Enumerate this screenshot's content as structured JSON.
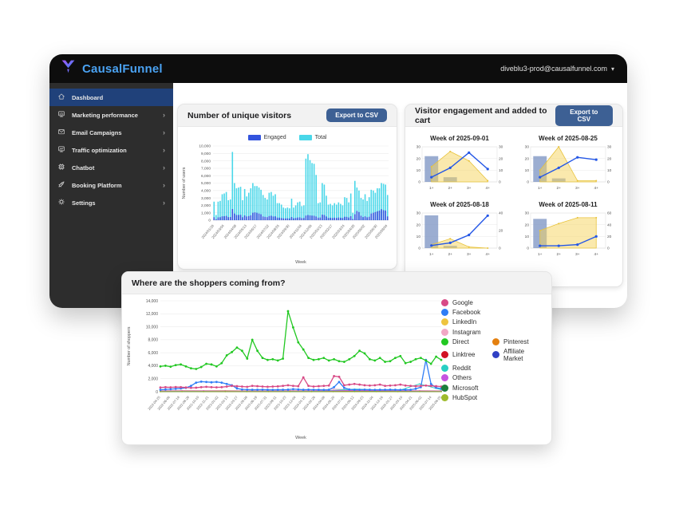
{
  "topbar": {
    "brand": "CausalFunnel",
    "account_email": "diveblu3-prod@causalfunnel.com"
  },
  "sidebar": {
    "items": [
      {
        "label": "Dashboard",
        "icon": "home-icon",
        "active": true,
        "chevron": false
      },
      {
        "label": "Marketing performance",
        "icon": "presentation-chart-icon",
        "active": false,
        "chevron": true
      },
      {
        "label": "Email Campaigns",
        "icon": "mail-icon",
        "active": false,
        "chevron": true
      },
      {
        "label": "Traffic optimization",
        "icon": "monitor-trend-icon",
        "active": false,
        "chevron": true
      },
      {
        "label": "Chatbot",
        "icon": "chip-icon",
        "active": false,
        "chevron": true
      },
      {
        "label": "Booking Platform",
        "icon": "rocket-icon",
        "active": false,
        "chevron": true
      },
      {
        "label": "Settings",
        "icon": "gear-icon",
        "active": false,
        "chevron": true
      }
    ]
  },
  "cards": {
    "unique_visitors": {
      "title": "Number of unique visitors",
      "export_label": "Export to CSV"
    },
    "engagement": {
      "title": "Visitor engagement and added to cart",
      "export_label": "Export to CSV"
    },
    "shoppers": {
      "title": "Where are the shoppers coming from?"
    }
  },
  "chart_data": [
    {
      "id": "unique_visitors",
      "type": "bar",
      "title": "Number of unique visitors",
      "xlabel": "Week",
      "ylabel": "Number of users",
      "ylim": [
        0,
        10000
      ],
      "ytick_step": 1000,
      "grid": true,
      "legend_position": "top",
      "legend": [
        {
          "name": "Engaged",
          "color": "#3354de"
        },
        {
          "name": "Total",
          "color": "#49d7e9"
        }
      ],
      "x_tick_labels": [
        "2024/01/29",
        "2024/03/04",
        "2024/04/08",
        "2024/05/13",
        "2024/06/17",
        "2024/07/22",
        "2024/08/26",
        "2024/09/30",
        "2024/11/04",
        "2024/12/09",
        "2025/01/13",
        "2025/02/17",
        "2025/03/24",
        "2025/04/28",
        "2025/06/02",
        "2025/06/30",
        "2025/08/04"
      ],
      "series": [
        {
          "name": "Total",
          "color": "#49d7e9",
          "values": [
            2500,
            700,
            2500,
            2600,
            3500,
            3600,
            3800,
            2700,
            2800,
            9200,
            5000,
            4300,
            4400,
            4500,
            2700,
            4200,
            3200,
            3700,
            4300,
            5000,
            4600,
            4600,
            4400,
            4100,
            3400,
            3000,
            2800,
            3700,
            3800,
            3300,
            3500,
            2300,
            2300,
            2100,
            1700,
            1600,
            1700,
            1600,
            2900,
            1700,
            2000,
            2400,
            2500,
            1900,
            2000,
            8300,
            8900,
            8100,
            7700,
            7600,
            6100,
            2300,
            2400,
            5000,
            4800,
            3300,
            2100,
            2200,
            2000,
            2300,
            2100,
            2400,
            2200,
            2000,
            3100,
            3000,
            2400,
            3600,
            1000,
            5300,
            4400,
            4000,
            3000,
            2800,
            3500,
            2600,
            3100,
            4100,
            4000,
            3700,
            4300,
            4300,
            5000,
            4900,
            4800,
            3400
          ]
        },
        {
          "name": "Engaged",
          "color": "#3354de",
          "values": [
            400,
            120,
            380,
            400,
            520,
            540,
            580,
            410,
            430,
            1500,
            900,
            700,
            710,
            720,
            400,
            650,
            500,
            560,
            660,
            1000,
            1050,
            1000,
            900,
            800,
            500,
            450,
            410,
            560,
            600,
            500,
            520,
            350,
            340,
            300,
            250,
            240,
            260,
            240,
            430,
            260,
            300,
            360,
            380,
            280,
            300,
            620,
            700,
            650,
            620,
            600,
            500,
            340,
            360,
            750,
            700,
            500,
            310,
            330,
            300,
            340,
            310,
            360,
            330,
            300,
            460,
            450,
            360,
            540,
            150,
            800,
            1250,
            1100,
            600,
            420,
            520,
            390,
            460,
            900,
            1000,
            1100,
            1200,
            1290,
            1480,
            1350,
            1300,
            510
          ]
        }
      ]
    },
    {
      "id": "engagement_weeks",
      "type": "mixed-mini",
      "categories": [
        "1+",
        "2+",
        "3+",
        "4+"
      ],
      "colors": {
        "bar": "#8299c6",
        "area": "#f6d45c",
        "line": "#2457e6"
      },
      "charts": [
        {
          "title": "Week of 2025-09-01",
          "left_ticks": [
            0,
            10,
            20,
            30
          ],
          "right_ticks": [
            0,
            10,
            20,
            30
          ],
          "bars": [
            22,
            4,
            0,
            0
          ],
          "area": [
            13,
            26,
            18,
            1
          ],
          "line": [
            4,
            12,
            25,
            11
          ]
        },
        {
          "title": "Week of 2025-08-25",
          "left_ticks": [
            0,
            10,
            20,
            30
          ],
          "right_ticks": [
            0,
            10,
            20,
            30
          ],
          "bars": [
            22,
            3,
            0,
            0
          ],
          "area": [
            10,
            30,
            1,
            1
          ],
          "line": [
            4,
            12,
            21,
            19
          ]
        },
        {
          "title": "Week of 2025-08-18",
          "left_ticks": [
            0,
            10,
            20,
            30
          ],
          "right_ticks": [
            0,
            20,
            40
          ],
          "bars": [
            28,
            2,
            0,
            0
          ],
          "area": [
            3,
            8,
            1,
            0
          ],
          "line": [
            3,
            6,
            15,
            37
          ]
        },
        {
          "title": "Week of 2025-08-11",
          "left_ticks": [
            0,
            10,
            20,
            30
          ],
          "right_ticks": [
            0,
            20,
            40,
            60
          ],
          "bars": [
            25,
            0,
            0,
            0
          ],
          "area": [
            15,
            21,
            26,
            26
          ],
          "line": [
            4,
            4,
            6,
            20
          ]
        }
      ]
    },
    {
      "id": "shoppers_sources",
      "type": "line",
      "title": "Where are the shoppers coming from?",
      "xlabel": "Week",
      "ylabel": "Number of shoppers",
      "ylim": [
        0,
        14000
      ],
      "ytick_step": 2000,
      "grid": true,
      "legend_position": "right",
      "x_tick_labels": [
        "2022-04-25",
        "2022-06-06",
        "2022-07-18",
        "2022-08-29",
        "2022-10-10",
        "2022-11-21",
        "2023-01-02",
        "2023-02-13",
        "2023-03-27",
        "2023-05-08",
        "2023-06-19",
        "2023-07-31",
        "2023-09-11",
        "2023-10-23",
        "2023-12-04",
        "2024-01-15",
        "2024-02-26",
        "2024-04-08",
        "2024-05-20",
        "2024-07-01",
        "2024-08-12",
        "2024-09-23",
        "2024-11-04",
        "2024-12-16",
        "2025-01-27",
        "2025-03-10",
        "2025-04-21",
        "2025-06-02",
        "2025-07-14",
        "2025-08-25"
      ],
      "legend_rows": [
        [
          "Google"
        ],
        [
          "Facebook"
        ],
        [
          "LinkedIn"
        ],
        [
          "Instagram"
        ],
        [
          "Direct",
          "Pinterest"
        ],
        [
          "Linktree",
          "Affiliate Market"
        ],
        [
          "Reddit"
        ],
        [
          "Others"
        ],
        [
          "Microsoft"
        ],
        [
          "HubSpot"
        ]
      ],
      "series": [
        {
          "name": "LinkedIn",
          "color": "#eec43f",
          "values": [
            150,
            180,
            160,
            170,
            150,
            140,
            160,
            150,
            170,
            160,
            150,
            140,
            160,
            150
          ]
        },
        {
          "name": "Instagram",
          "color": "#f2a7c5",
          "values": [
            100,
            120,
            110,
            100,
            90,
            110,
            100,
            120,
            400,
            300,
            200,
            150,
            120,
            100
          ]
        },
        {
          "name": "Pinterest",
          "color": "#e4800f",
          "values": [
            60,
            70,
            65,
            60,
            55,
            60,
            70,
            65,
            60,
            55,
            60,
            65,
            70,
            60
          ]
        },
        {
          "name": "Linktree",
          "color": "#d11324",
          "values": [
            40,
            50,
            45,
            40,
            35,
            40,
            50,
            45,
            40,
            35,
            40,
            45,
            50,
            40
          ]
        },
        {
          "name": "Affiliate Market",
          "color": "#3040c4",
          "values": [
            30,
            35,
            30,
            28,
            25,
            30,
            35,
            30,
            28,
            25,
            30,
            28,
            35,
            30
          ]
        },
        {
          "name": "Reddit",
          "color": "#27cfc3",
          "values": [
            80,
            90,
            85,
            80,
            75,
            80,
            90,
            85,
            200,
            400,
            300,
            150,
            1200,
            300
          ]
        },
        {
          "name": "Others",
          "color": "#c653e0",
          "values": [
            120,
            130,
            125,
            120,
            110,
            120,
            130,
            125,
            150,
            200,
            180,
            150,
            130,
            120
          ]
        },
        {
          "name": "Microsoft",
          "color": "#1d7d3c",
          "values": [
            20,
            25,
            22,
            20,
            18,
            20,
            25,
            22,
            20,
            18,
            20,
            22,
            25,
            20
          ]
        },
        {
          "name": "HubSpot",
          "color": "#9ebb2b",
          "values": [
            15,
            18,
            16,
            15,
            14,
            15,
            18,
            16,
            15,
            14,
            15,
            16,
            18,
            15
          ]
        },
        {
          "name": "Facebook",
          "color": "#2f7df6",
          "values": [
            300,
            350,
            400,
            450,
            500,
            600,
            900,
            1400,
            1550,
            1500,
            1450,
            1500,
            1400,
            1200,
            1000,
            500,
            350,
            320,
            300,
            310,
            320,
            300,
            290,
            300,
            310,
            320,
            400,
            350,
            300,
            320,
            310,
            300,
            290,
            300,
            700,
            1500,
            600,
            350,
            300,
            310,
            320,
            300,
            290,
            300,
            310,
            320,
            300,
            290,
            300,
            310,
            450,
            700,
            4900,
            1200,
            600,
            500
          ]
        },
        {
          "name": "Google",
          "color": "#d84a86",
          "values": [
            650,
            700,
            680,
            720,
            700,
            650,
            600,
            620,
            700,
            750,
            700,
            680,
            700,
            800,
            900,
            850,
            800,
            750,
            900,
            850,
            800,
            760,
            800,
            820,
            900,
            1000,
            900,
            850,
            2200,
            900,
            800,
            850,
            900,
            950,
            2400,
            2300,
            1000,
            1100,
            1200,
            1100,
            1000,
            950,
            1000,
            1100,
            900,
            950,
            1000,
            1100,
            950,
            900,
            850,
            900,
            950,
            900,
            850,
            800
          ]
        },
        {
          "name": "Direct",
          "color": "#22c822",
          "values": [
            3900,
            4000,
            3850,
            4100,
            4200,
            3900,
            3600,
            3500,
            3800,
            4300,
            4200,
            3900,
            4400,
            5600,
            6100,
            6800,
            6300,
            5100,
            8000,
            6300,
            5200,
            4900,
            5000,
            4800,
            5100,
            12400,
            9900,
            7600,
            6500,
            5200,
            4900,
            5000,
            5200,
            4800,
            5000,
            4700,
            4600,
            5000,
            5500,
            6300,
            5900,
            5000,
            4800,
            5200,
            4600,
            4700,
            5200,
            5500,
            4400,
            4600,
            5000,
            5200,
            4800,
            4300,
            5400,
            4900
          ]
        }
      ]
    }
  ]
}
